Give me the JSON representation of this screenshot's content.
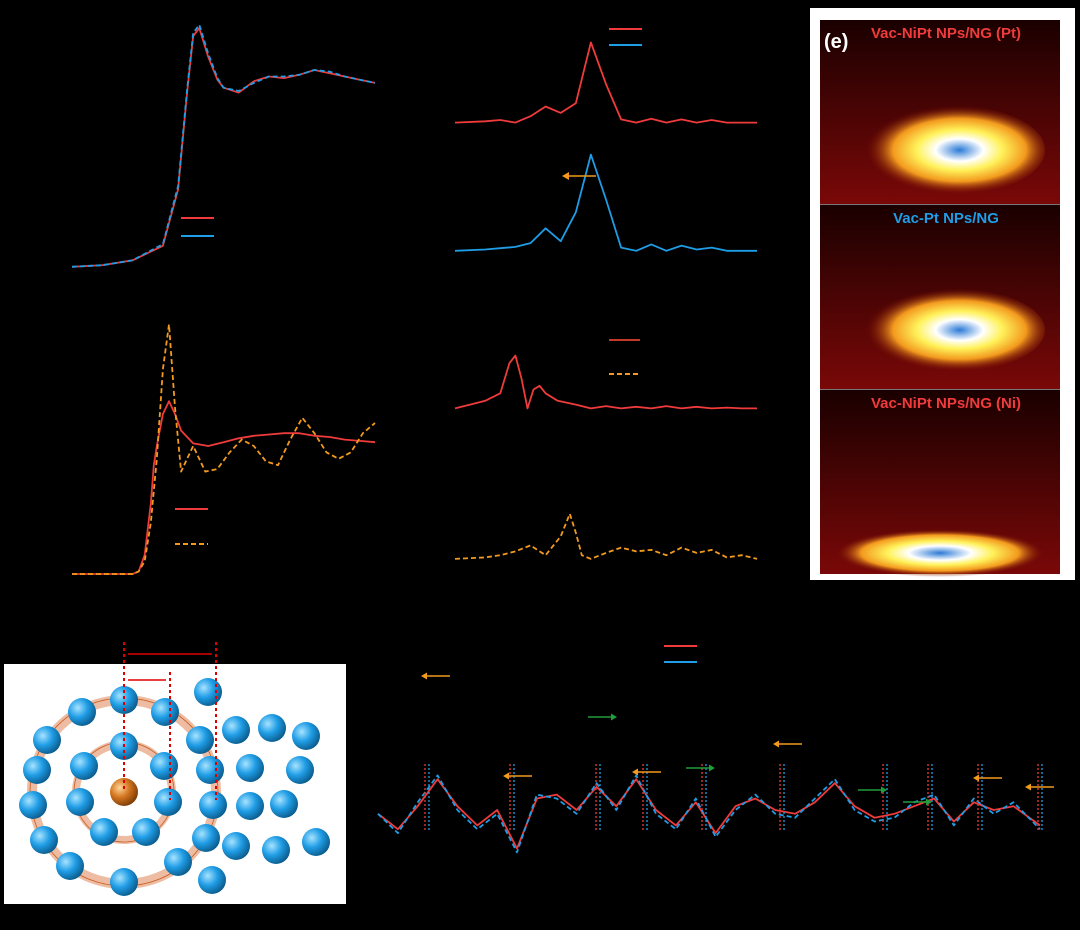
{
  "colors": {
    "red": "#ef3b3b",
    "blue": "#1f9de6",
    "orange": "#f39a1e",
    "green": "#1f9e3a",
    "dark_red": "#c0392b"
  },
  "panel_e": {
    "label": "(e)",
    "maps": [
      {
        "title": "Vac-NiPt NPs/NG (Pt)",
        "title_color": "#ef3b3b"
      },
      {
        "title": "Vac-Pt NPs/NG",
        "title_color": "#1f9de6"
      },
      {
        "title": "Vac-NiPt NPs/NG (Ni)",
        "title_color": "#ef3b3b"
      }
    ]
  },
  "chart_data": [
    {
      "id": "panel-a",
      "type": "line",
      "grid": false,
      "xlim": [
        0,
        100
      ],
      "ylim": [
        0,
        1.55
      ],
      "series": [
        {
          "color": "#ef3b3b",
          "dash": false,
          "x": [
            0,
            10,
            20,
            30,
            35,
            38,
            40,
            42,
            45,
            48,
            50,
            55,
            60,
            65,
            70,
            75,
            80,
            85,
            90,
            95,
            100
          ],
          "y": [
            0.02,
            0.03,
            0.06,
            0.15,
            0.5,
            1.1,
            1.45,
            1.5,
            1.32,
            1.18,
            1.13,
            1.1,
            1.17,
            1.2,
            1.19,
            1.21,
            1.24,
            1.22,
            1.2,
            1.18,
            1.16
          ]
        },
        {
          "color": "#1f9de6",
          "dash": true,
          "x": [
            0,
            10,
            20,
            30,
            35,
            38,
            40,
            42,
            45,
            48,
            50,
            55,
            60,
            65,
            70,
            75,
            80,
            85,
            90,
            95,
            100
          ],
          "y": [
            0.02,
            0.03,
            0.06,
            0.16,
            0.52,
            1.12,
            1.47,
            1.52,
            1.34,
            1.19,
            1.13,
            1.11,
            1.16,
            1.2,
            1.2,
            1.21,
            1.24,
            1.23,
            1.2,
            1.18,
            1.16
          ]
        }
      ]
    },
    {
      "id": "panel-b",
      "type": "line",
      "grid": false,
      "xlim": [
        0,
        100
      ],
      "ylim": [
        -0.3,
        3.6
      ],
      "series": [
        {
          "color": "#ef3b3b",
          "dash": false,
          "x": [
            0,
            10,
            15,
            20,
            25,
            30,
            35,
            40,
            45,
            50,
            55,
            60,
            65,
            70,
            75,
            80,
            85,
            90,
            100
          ],
          "y": [
            2.0,
            2.02,
            2.04,
            2.0,
            2.1,
            2.25,
            2.15,
            2.3,
            3.25,
            2.6,
            2.05,
            2.0,
            2.06,
            2.0,
            2.05,
            2.0,
            2.04,
            2.0,
            2.0
          ]
        },
        {
          "color": "#1f9de6",
          "dash": false,
          "x": [
            0,
            10,
            15,
            20,
            25,
            30,
            35,
            40,
            45,
            50,
            55,
            60,
            65,
            70,
            75,
            80,
            85,
            90,
            100
          ],
          "y": [
            0.0,
            0.02,
            0.04,
            0.06,
            0.12,
            0.35,
            0.15,
            0.6,
            1.5,
            0.8,
            0.05,
            0.0,
            0.1,
            0.0,
            0.08,
            0.02,
            0.05,
            0.0,
            0.0
          ]
        }
      ]
    },
    {
      "id": "panel-c",
      "type": "line",
      "grid": false,
      "xlim": [
        0,
        100
      ],
      "ylim": [
        0,
        2.0
      ],
      "series": [
        {
          "color": "#ef3b3b",
          "dash": false,
          "x": [
            0,
            10,
            20,
            22,
            24,
            26,
            27,
            28,
            30,
            32,
            34,
            36,
            40,
            45,
            50,
            55,
            60,
            65,
            70,
            75,
            80,
            85,
            90,
            95,
            100
          ],
          "y": [
            0.0,
            0.0,
            0.0,
            0.02,
            0.15,
            0.55,
            0.85,
            1.0,
            1.25,
            1.35,
            1.25,
            1.12,
            1.02,
            1.0,
            1.03,
            1.06,
            1.08,
            1.09,
            1.1,
            1.1,
            1.08,
            1.07,
            1.05,
            1.04,
            1.03
          ]
        },
        {
          "color": "#f39a1e",
          "dash": true,
          "x": [
            0,
            10,
            20,
            22,
            24,
            26,
            28,
            30,
            32,
            34,
            36,
            38,
            40,
            44,
            48,
            52,
            56,
            60,
            64,
            68,
            72,
            76,
            80,
            84,
            88,
            92,
            96,
            100
          ],
          "y": [
            0.0,
            0.0,
            0.0,
            0.02,
            0.1,
            0.4,
            0.9,
            1.6,
            1.95,
            1.3,
            0.8,
            0.9,
            1.0,
            0.8,
            0.82,
            0.95,
            1.05,
            1.0,
            0.88,
            0.85,
            1.05,
            1.22,
            1.1,
            0.95,
            0.9,
            0.95,
            1.1,
            1.18
          ]
        }
      ]
    },
    {
      "id": "panel-d",
      "type": "line",
      "grid": false,
      "xlim": [
        0,
        100
      ],
      "ylim": [
        -0.2,
        3.2
      ],
      "series": [
        {
          "color": "#ef3b3b",
          "dash": false,
          "x": [
            0,
            5,
            10,
            15,
            18,
            20,
            22,
            24,
            26,
            28,
            30,
            34,
            40,
            45,
            50,
            55,
            60,
            65,
            70,
            75,
            80,
            85,
            90,
            95,
            100
          ],
          "y": [
            2.0,
            2.05,
            2.1,
            2.2,
            2.6,
            2.7,
            2.4,
            2.0,
            2.25,
            2.3,
            2.2,
            2.1,
            2.05,
            2.0,
            2.03,
            2.0,
            2.02,
            2.0,
            2.03,
            2.0,
            2.02,
            2.0,
            2.01,
            2.0,
            2.0
          ]
        },
        {
          "color": "#f39a1e",
          "dash": true,
          "x": [
            0,
            10,
            15,
            20,
            25,
            30,
            35,
            38,
            40,
            42,
            45,
            50,
            55,
            60,
            65,
            70,
            75,
            80,
            85,
            90,
            95,
            100
          ],
          "y": [
            0.0,
            0.02,
            0.05,
            0.1,
            0.18,
            0.05,
            0.3,
            0.6,
            0.35,
            0.05,
            0.0,
            0.08,
            0.15,
            0.1,
            0.12,
            0.05,
            0.15,
            0.08,
            0.12,
            0.02,
            0.05,
            0.0
          ]
        }
      ]
    },
    {
      "id": "panel-g",
      "type": "line",
      "grid": false,
      "xlim": [
        0,
        100
      ],
      "ylim": [
        -1.2,
        1.4
      ],
      "series": [
        {
          "color": "#ef3b3b",
          "dash": false,
          "x": [
            0,
            3,
            6,
            9,
            12,
            15,
            18,
            21,
            24,
            27,
            30,
            33,
            36,
            39,
            42,
            45,
            48,
            51,
            54,
            57,
            60,
            63,
            66,
            69,
            72,
            75,
            78,
            81,
            84,
            87,
            90,
            93,
            96,
            100
          ],
          "y": [
            0.0,
            -0.4,
            0.2,
            0.9,
            0.2,
            -0.3,
            0.1,
            -0.9,
            0.4,
            0.5,
            0.1,
            0.7,
            0.2,
            0.9,
            0.1,
            -0.3,
            0.3,
            -0.5,
            0.2,
            0.4,
            0.1,
            0.0,
            0.3,
            0.8,
            0.2,
            -0.1,
            0.0,
            0.2,
            0.4,
            -0.2,
            0.3,
            0.1,
            0.2,
            -0.3
          ]
        },
        {
          "color": "#1f9de6",
          "dash": true,
          "x": [
            0,
            3,
            6,
            9,
            12,
            15,
            18,
            21,
            24,
            27,
            30,
            33,
            36,
            39,
            42,
            45,
            48,
            51,
            54,
            57,
            60,
            63,
            66,
            69,
            72,
            75,
            78,
            81,
            84,
            87,
            90,
            93,
            96,
            100
          ],
          "y": [
            0.0,
            -0.5,
            0.3,
            1.0,
            0.1,
            -0.4,
            0.0,
            -1.0,
            0.5,
            0.4,
            0.0,
            0.8,
            0.1,
            1.0,
            0.0,
            -0.4,
            0.4,
            -0.6,
            0.1,
            0.5,
            0.0,
            -0.1,
            0.4,
            0.9,
            0.1,
            -0.2,
            -0.1,
            0.3,
            0.5,
            -0.3,
            0.4,
            0.0,
            0.3,
            -0.4
          ]
        }
      ]
    }
  ]
}
